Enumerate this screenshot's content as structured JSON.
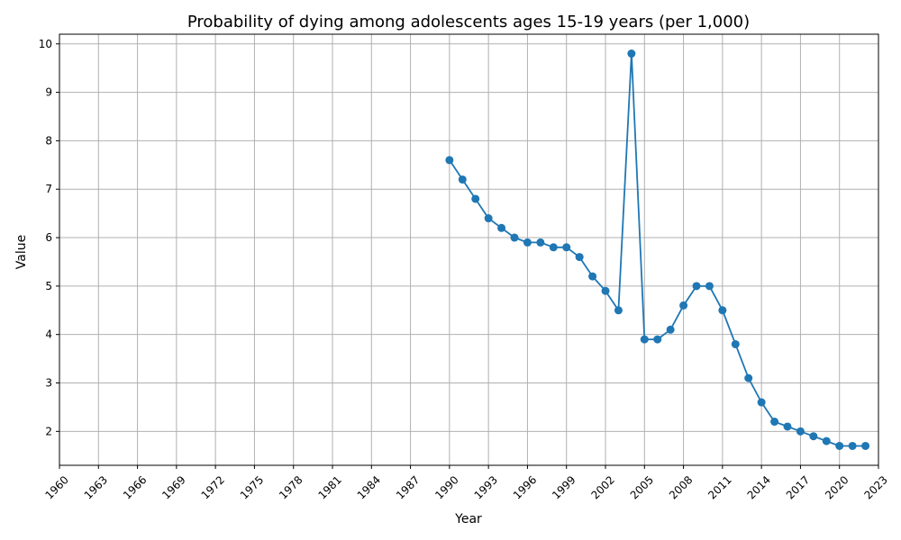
{
  "chart_data": {
    "type": "line",
    "title": "Probability of dying among adolescents ages 15-19 years (per 1,000)",
    "xlabel": "Year",
    "ylabel": "Value",
    "xlim": [
      1960,
      2023
    ],
    "ylim": [
      1.3,
      10.2
    ],
    "x_ticks": [
      1960,
      1963,
      1966,
      1969,
      1972,
      1975,
      1978,
      1981,
      1984,
      1987,
      1990,
      1993,
      1996,
      1999,
      2002,
      2005,
      2008,
      2011,
      2014,
      2017,
      2020,
      2023
    ],
    "y_ticks": [
      2,
      3,
      4,
      5,
      6,
      7,
      8,
      9,
      10
    ],
    "grid": true,
    "series": [
      {
        "color": "#1f77b4",
        "marker": "circle",
        "x": [
          1990,
          1991,
          1992,
          1993,
          1994,
          1995,
          1996,
          1997,
          1998,
          1999,
          2000,
          2001,
          2002,
          2003,
          2004,
          2005,
          2006,
          2007,
          2008,
          2009,
          2010,
          2011,
          2012,
          2013,
          2014,
          2015,
          2016,
          2017,
          2018,
          2019,
          2020,
          2021,
          2022
        ],
        "values": [
          7.6,
          7.2,
          6.8,
          6.4,
          6.2,
          6.0,
          5.9,
          5.9,
          5.8,
          5.8,
          5.6,
          5.2,
          4.9,
          4.5,
          9.8,
          3.9,
          3.9,
          4.1,
          4.6,
          5.0,
          5.0,
          4.5,
          3.8,
          3.1,
          2.6,
          2.2,
          2.1,
          2.0,
          1.9,
          1.8,
          1.7,
          1.7,
          1.7
        ]
      }
    ]
  }
}
